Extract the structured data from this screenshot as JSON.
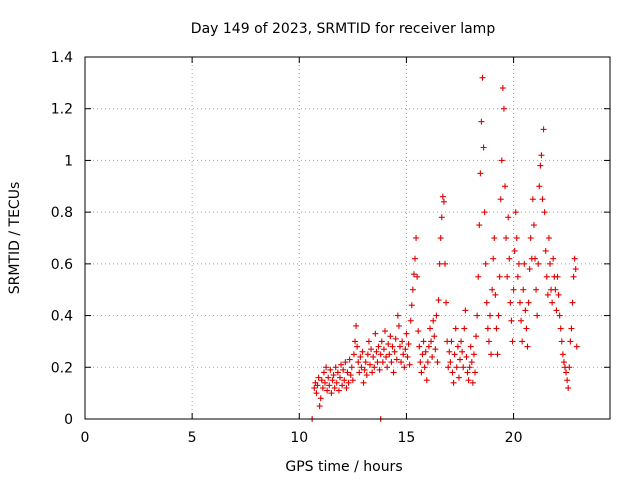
{
  "chart_data": {
    "type": "scatter",
    "title": "Day 149 of 2023, SRMTID for receiver lamp",
    "xlabel": "GPS time / hours",
    "ylabel": "SRMTID / TECUs",
    "xlim": [
      0,
      24.5
    ],
    "ylim": [
      0,
      1.4
    ],
    "xticks": [
      0,
      5,
      10,
      15,
      20
    ],
    "yticks": [
      0,
      0.2,
      0.4,
      0.6,
      0.8,
      1,
      1.2,
      1.4
    ],
    "xtick_labels": [
      "0",
      "5",
      "10",
      "15",
      "20"
    ],
    "ytick_labels": [
      "0",
      "0.2",
      "0.4",
      "0.6",
      "0.8",
      "1",
      "1.2",
      "1.4"
    ],
    "grid": true,
    "marker": "+",
    "color": "#e00000",
    "series": [
      {
        "name": "SRMTID",
        "points": [
          [
            10.6,
            0.0
          ],
          [
            13.8,
            0.0
          ],
          [
            10.7,
            0.12
          ],
          [
            10.75,
            0.14
          ],
          [
            10.8,
            0.1
          ],
          [
            10.85,
            0.13
          ],
          [
            10.9,
            0.16
          ],
          [
            10.95,
            0.05
          ],
          [
            11.0,
            0.08
          ],
          [
            11.05,
            0.15
          ],
          [
            11.1,
            0.12
          ],
          [
            11.15,
            0.18
          ],
          [
            11.2,
            0.14
          ],
          [
            11.25,
            0.2
          ],
          [
            11.3,
            0.11
          ],
          [
            11.35,
            0.16
          ],
          [
            11.4,
            0.13
          ],
          [
            11.45,
            0.19
          ],
          [
            11.5,
            0.1
          ],
          [
            11.55,
            0.15
          ],
          [
            11.6,
            0.17
          ],
          [
            11.65,
            0.12
          ],
          [
            11.7,
            0.2
          ],
          [
            11.75,
            0.14
          ],
          [
            11.8,
            0.18
          ],
          [
            11.85,
            0.11
          ],
          [
            11.9,
            0.16
          ],
          [
            11.95,
            0.21
          ],
          [
            12.0,
            0.13
          ],
          [
            12.05,
            0.19
          ],
          [
            12.1,
            0.15
          ],
          [
            12.15,
            0.22
          ],
          [
            12.2,
            0.12
          ],
          [
            12.25,
            0.18
          ],
          [
            12.3,
            0.14
          ],
          [
            12.35,
            0.23
          ],
          [
            12.4,
            0.17
          ],
          [
            12.45,
            0.2
          ],
          [
            12.5,
            0.15
          ],
          [
            12.55,
            0.25
          ],
          [
            12.6,
            0.3
          ],
          [
            12.65,
            0.36
          ],
          [
            12.7,
            0.28
          ],
          [
            12.75,
            0.22
          ],
          [
            12.8,
            0.18
          ],
          [
            12.85,
            0.24
          ],
          [
            12.9,
            0.2
          ],
          [
            12.95,
            0.26
          ],
          [
            13.0,
            0.14
          ],
          [
            13.05,
            0.19
          ],
          [
            13.1,
            0.22
          ],
          [
            13.15,
            0.17
          ],
          [
            13.2,
            0.25
          ],
          [
            13.25,
            0.3
          ],
          [
            13.3,
            0.21
          ],
          [
            13.35,
            0.27
          ],
          [
            13.4,
            0.18
          ],
          [
            13.45,
            0.24
          ],
          [
            13.5,
            0.2
          ],
          [
            13.55,
            0.33
          ],
          [
            13.6,
            0.26
          ],
          [
            13.65,
            0.22
          ],
          [
            13.7,
            0.28
          ],
          [
            13.75,
            0.19
          ],
          [
            13.8,
            0.25
          ],
          [
            13.85,
            0.3
          ],
          [
            13.9,
            0.22
          ],
          [
            13.95,
            0.27
          ],
          [
            14.0,
            0.34
          ],
          [
            14.05,
            0.24
          ],
          [
            14.1,
            0.2
          ],
          [
            14.15,
            0.29
          ],
          [
            14.2,
            0.25
          ],
          [
            14.25,
            0.32
          ],
          [
            14.3,
            0.22
          ],
          [
            14.35,
            0.28
          ],
          [
            14.4,
            0.18
          ],
          [
            14.45,
            0.26
          ],
          [
            14.5,
            0.31
          ],
          [
            14.55,
            0.23
          ],
          [
            14.6,
            0.4
          ],
          [
            14.65,
            0.36
          ],
          [
            14.7,
            0.28
          ],
          [
            14.75,
            0.22
          ],
          [
            14.8,
            0.3
          ],
          [
            14.85,
            0.25
          ],
          [
            14.9,
            0.2
          ],
          [
            14.95,
            0.27
          ],
          [
            15.0,
            0.33
          ],
          [
            15.05,
            0.24
          ],
          [
            15.1,
            0.29
          ],
          [
            15.15,
            0.21
          ],
          [
            15.2,
            0.38
          ],
          [
            15.25,
            0.44
          ],
          [
            15.3,
            0.5
          ],
          [
            15.35,
            0.56
          ],
          [
            15.4,
            0.62
          ],
          [
            15.45,
            0.7
          ],
          [
            15.5,
            0.55
          ],
          [
            15.55,
            0.34
          ],
          [
            15.6,
            0.28
          ],
          [
            15.65,
            0.22
          ],
          [
            15.7,
            0.18
          ],
          [
            15.75,
            0.25
          ],
          [
            15.8,
            0.3
          ],
          [
            15.85,
            0.2
          ],
          [
            15.9,
            0.26
          ],
          [
            15.95,
            0.15
          ],
          [
            16.0,
            0.22
          ],
          [
            16.05,
            0.28
          ],
          [
            16.1,
            0.35
          ],
          [
            16.15,
            0.3
          ],
          [
            16.2,
            0.24
          ],
          [
            16.25,
            0.38
          ],
          [
            16.3,
            0.32
          ],
          [
            16.35,
            0.27
          ],
          [
            16.4,
            0.4
          ],
          [
            16.45,
            0.22
          ],
          [
            16.5,
            0.46
          ],
          [
            16.55,
            0.6
          ],
          [
            16.6,
            0.7
          ],
          [
            16.65,
            0.78
          ],
          [
            16.7,
            0.86
          ],
          [
            16.75,
            0.84
          ],
          [
            16.8,
            0.6
          ],
          [
            16.85,
            0.45
          ],
          [
            16.9,
            0.3
          ],
          [
            16.95,
            0.2
          ],
          [
            17.0,
            0.26
          ],
          [
            17.05,
            0.22
          ],
          [
            17.1,
            0.3
          ],
          [
            17.15,
            0.18
          ],
          [
            17.2,
            0.14
          ],
          [
            17.25,
            0.25
          ],
          [
            17.3,
            0.35
          ],
          [
            17.35,
            0.2
          ],
          [
            17.4,
            0.28
          ],
          [
            17.45,
            0.16
          ],
          [
            17.5,
            0.23
          ],
          [
            17.55,
            0.3
          ],
          [
            17.6,
            0.26
          ],
          [
            17.65,
            0.2
          ],
          [
            17.7,
            0.35
          ],
          [
            17.75,
            0.42
          ],
          [
            17.8,
            0.24
          ],
          [
            17.85,
            0.18
          ],
          [
            17.9,
            0.15
          ],
          [
            17.95,
            0.2
          ],
          [
            18.0,
            0.28
          ],
          [
            18.05,
            0.22
          ],
          [
            18.1,
            0.14
          ],
          [
            18.15,
            0.25
          ],
          [
            18.2,
            0.18
          ],
          [
            18.25,
            0.32
          ],
          [
            18.3,
            0.4
          ],
          [
            18.35,
            0.55
          ],
          [
            18.4,
            0.75
          ],
          [
            18.45,
            0.95
          ],
          [
            18.5,
            1.15
          ],
          [
            18.55,
            1.32
          ],
          [
            18.6,
            1.05
          ],
          [
            18.65,
            0.8
          ],
          [
            18.7,
            0.6
          ],
          [
            18.75,
            0.45
          ],
          [
            18.8,
            0.35
          ],
          [
            18.85,
            0.3
          ],
          [
            18.9,
            0.4
          ],
          [
            18.95,
            0.25
          ],
          [
            19.0,
            0.5
          ],
          [
            19.05,
            0.62
          ],
          [
            19.1,
            0.7
          ],
          [
            19.15,
            0.48
          ],
          [
            19.2,
            0.35
          ],
          [
            19.25,
            0.25
          ],
          [
            19.3,
            0.4
          ],
          [
            19.35,
            0.55
          ],
          [
            19.4,
            0.85
          ],
          [
            19.45,
            1.0
          ],
          [
            19.5,
            1.28
          ],
          [
            19.55,
            1.2
          ],
          [
            19.6,
            0.9
          ],
          [
            19.65,
            0.7
          ],
          [
            19.7,
            0.55
          ],
          [
            19.75,
            0.78
          ],
          [
            19.8,
            0.62
          ],
          [
            19.85,
            0.45
          ],
          [
            19.9,
            0.38
          ],
          [
            19.95,
            0.3
          ],
          [
            20.0,
            0.5
          ],
          [
            20.05,
            0.65
          ],
          [
            20.1,
            0.8
          ],
          [
            20.15,
            0.7
          ],
          [
            20.2,
            0.55
          ],
          [
            20.25,
            0.6
          ],
          [
            20.3,
            0.45
          ],
          [
            20.35,
            0.38
          ],
          [
            20.4,
            0.3
          ],
          [
            20.45,
            0.5
          ],
          [
            20.5,
            0.6
          ],
          [
            20.55,
            0.42
          ],
          [
            20.6,
            0.35
          ],
          [
            20.65,
            0.28
          ],
          [
            20.7,
            0.45
          ],
          [
            20.75,
            0.58
          ],
          [
            20.8,
            0.7
          ],
          [
            20.85,
            0.62
          ],
          [
            20.9,
            0.85
          ],
          [
            20.95,
            0.75
          ],
          [
            21.0,
            0.62
          ],
          [
            21.05,
            0.5
          ],
          [
            21.1,
            0.4
          ],
          [
            21.15,
            0.6
          ],
          [
            21.2,
            0.9
          ],
          [
            21.25,
            0.98
          ],
          [
            21.3,
            1.02
          ],
          [
            21.35,
            0.85
          ],
          [
            21.4,
            1.12
          ],
          [
            21.45,
            0.8
          ],
          [
            21.5,
            0.65
          ],
          [
            21.55,
            0.55
          ],
          [
            21.6,
            0.48
          ],
          [
            21.65,
            0.7
          ],
          [
            21.7,
            0.6
          ],
          [
            21.75,
            0.5
          ],
          [
            21.8,
            0.45
          ],
          [
            21.85,
            0.62
          ],
          [
            21.9,
            0.55
          ],
          [
            21.95,
            0.5
          ],
          [
            22.0,
            0.42
          ],
          [
            22.05,
            0.55
          ],
          [
            22.1,
            0.48
          ],
          [
            22.15,
            0.4
          ],
          [
            22.2,
            0.35
          ],
          [
            22.25,
            0.3
          ],
          [
            22.3,
            0.25
          ],
          [
            22.35,
            0.22
          ],
          [
            22.4,
            0.2
          ],
          [
            22.45,
            0.18
          ],
          [
            22.5,
            0.15
          ],
          [
            22.55,
            0.12
          ],
          [
            22.6,
            0.2
          ],
          [
            22.65,
            0.3
          ],
          [
            22.7,
            0.35
          ],
          [
            22.75,
            0.45
          ],
          [
            22.8,
            0.55
          ],
          [
            22.85,
            0.62
          ],
          [
            22.9,
            0.58
          ],
          [
            22.95,
            0.28
          ]
        ]
      }
    ]
  }
}
